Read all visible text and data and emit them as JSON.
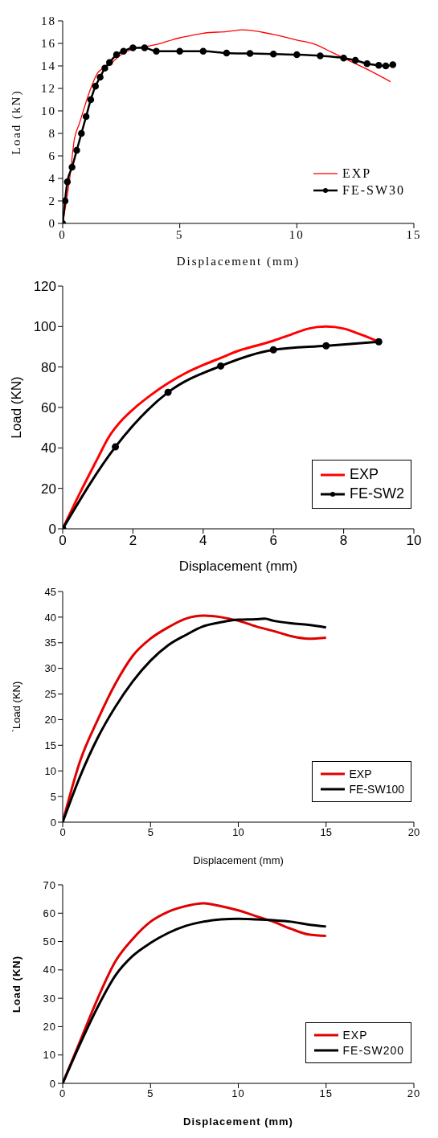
{
  "chart_data": [
    {
      "type": "line",
      "xlabel": "Displacement (mm)",
      "ylabel": "Load (kN)",
      "xlim": [
        0,
        15
      ],
      "xticks": [
        0,
        5,
        10,
        15
      ],
      "ylim": [
        0,
        18
      ],
      "yticks": [
        0,
        2,
        4,
        6,
        8,
        10,
        12,
        14,
        16,
        18
      ],
      "grid": false,
      "legend": "bottom right",
      "series": [
        {
          "name": "EXP",
          "color": "#ff0000",
          "marker": "none",
          "x": [
            0,
            0.3,
            0.5,
            0.7,
            1.2,
            1.5,
            2,
            2.5,
            3,
            3.5,
            4,
            4.5,
            5,
            5.5,
            6,
            7,
            7.7,
            8.5,
            9,
            10,
            10.8,
            11.5,
            12,
            13,
            14
          ],
          "values": [
            0,
            4,
            7.5,
            8.8,
            12,
            13.4,
            14.1,
            15,
            15.5,
            15.7,
            15.9,
            16.2,
            16.5,
            16.7,
            16.9,
            17.05,
            17.2,
            17,
            16.8,
            16.3,
            15.9,
            15.2,
            14.7,
            13.7,
            12.6
          ]
        },
        {
          "name": "FE-SW30",
          "color": "#000000",
          "marker": "circle",
          "x": [
            0,
            0.1,
            0.2,
            0.4,
            0.6,
            0.8,
            1,
            1.2,
            1.4,
            1.6,
            1.8,
            2,
            2.3,
            2.6,
            3,
            3.5,
            4,
            5,
            6,
            7,
            8,
            9,
            10,
            11,
            12,
            12.5,
            13,
            13.5,
            13.8,
            14.1
          ],
          "values": [
            0,
            2,
            3.7,
            5,
            6.5,
            8,
            9.5,
            11,
            12.2,
            13,
            13.8,
            14.3,
            15,
            15.3,
            15.6,
            15.6,
            15.3,
            15.3,
            15.3,
            15.15,
            15.1,
            15.05,
            15,
            14.9,
            14.7,
            14.5,
            14.2,
            14.05,
            14,
            14.1
          ]
        }
      ]
    },
    {
      "type": "line",
      "xlabel": "Displacement (mm)",
      "ylabel": "Load (KN)",
      "xlim": [
        0,
        10
      ],
      "xticks": [
        0,
        2,
        4,
        6,
        8,
        10
      ],
      "ylim": [
        0,
        120
      ],
      "yticks": [
        0,
        20,
        40,
        60,
        80,
        100,
        120
      ],
      "grid": false,
      "legend": "bottom right",
      "series": [
        {
          "name": "EXP",
          "color": "#ff0000",
          "marker": "none",
          "x": [
            0,
            0.5,
            1,
            1.3,
            1.7,
            2,
            2.5,
            3,
            3.5,
            4,
            4.5,
            5,
            5.5,
            6,
            6.5,
            7,
            7.5,
            8,
            8.5,
            9
          ],
          "values": [
            0,
            18,
            35,
            45,
            54,
            59,
            66,
            72,
            77,
            81,
            84.5,
            88,
            90.5,
            93,
            96,
            99,
            100,
            99,
            96,
            92.5
          ]
        },
        {
          "name": "FE-SW2",
          "color": "#000000",
          "marker": "circle",
          "x": [
            0,
            1.5,
            3,
            4.5,
            6,
            7.5,
            9
          ],
          "values": [
            0,
            40.5,
            67.5,
            80.5,
            88.5,
            90.5,
            92.5
          ]
        }
      ]
    },
    {
      "type": "line",
      "xlabel": "Displacement (mm)",
      "ylabel": "`Load (KN)",
      "xlim": [
        0,
        20
      ],
      "xticks": [
        0,
        5,
        10,
        15,
        20
      ],
      "ylim": [
        0,
        45
      ],
      "yticks": [
        0,
        5,
        10,
        15,
        20,
        25,
        30,
        35,
        40,
        45
      ],
      "grid": false,
      "legend": "bottom right",
      "series": [
        {
          "name": "EXP",
          "color": "#e00000",
          "marker": "none",
          "x": [
            0,
            1,
            2,
            3,
            4,
            5,
            6,
            7,
            8,
            9,
            10,
            11,
            12,
            13,
            14,
            15
          ],
          "values": [
            0,
            12,
            20,
            27,
            32.5,
            35.8,
            38,
            39.7,
            40.3,
            40,
            39.3,
            38.2,
            37.3,
            36.3,
            35.8,
            36
          ]
        },
        {
          "name": "FE-SW100",
          "color": "#000000",
          "marker": "none",
          "x": [
            0,
            1,
            2,
            3,
            4,
            5,
            6,
            7,
            8,
            9,
            10,
            11,
            11.5,
            12,
            13,
            14,
            15
          ],
          "values": [
            0,
            9,
            16.5,
            22.5,
            27.5,
            31.5,
            34.5,
            36.5,
            38.2,
            39,
            39.5,
            39.6,
            39.7,
            39.3,
            38.8,
            38.5,
            38
          ]
        }
      ]
    },
    {
      "type": "line",
      "xlabel": "Displacement (mm)",
      "ylabel": "Load (KN)",
      "xlim": [
        0,
        20
      ],
      "xticks": [
        0,
        5,
        10,
        15,
        20
      ],
      "ylim": [
        0,
        70
      ],
      "yticks": [
        0,
        10,
        20,
        30,
        40,
        50,
        60,
        70
      ],
      "grid": false,
      "legend": "bottom right",
      "series": [
        {
          "name": "EXP",
          "color": "#e00000",
          "marker": "none",
          "x": [
            0,
            1,
            2,
            3,
            4,
            5,
            6,
            7,
            8,
            9,
            10,
            11,
            12,
            13,
            14,
            15
          ],
          "values": [
            0,
            15,
            30,
            43,
            51,
            57,
            60.5,
            62.5,
            63.5,
            62.5,
            61,
            59,
            57,
            54.5,
            52.5,
            52
          ]
        },
        {
          "name": "FE-SW200",
          "color": "#000000",
          "marker": "none",
          "x": [
            0,
            1,
            2,
            3,
            4,
            5,
            6,
            7,
            8,
            9,
            10,
            11,
            12,
            13,
            14,
            15
          ],
          "values": [
            0,
            14,
            27,
            38,
            45,
            49.5,
            53,
            55.5,
            57,
            57.8,
            58,
            57.8,
            57.5,
            57,
            56,
            55.3
          ]
        }
      ]
    }
  ]
}
